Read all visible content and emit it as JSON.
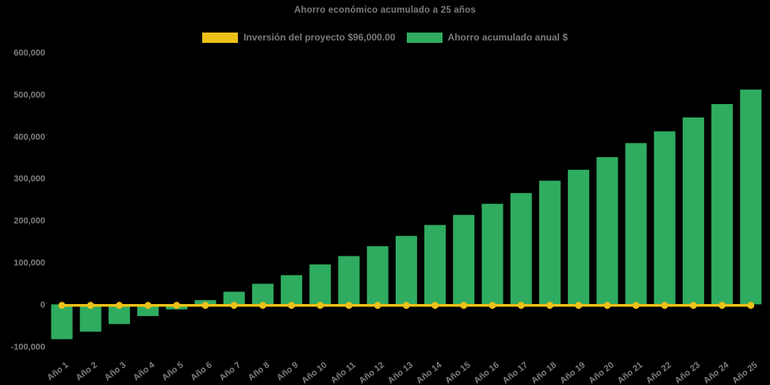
{
  "title": "Ahorro económico acumulado a 25 años",
  "legend": {
    "investment": {
      "label": "Inversión del proyecto $96,000.00",
      "color": "#EDC218"
    },
    "savings": {
      "label": "Ahorro acumulado anual $",
      "color": "#2FAC60"
    }
  },
  "colors": {
    "background": "#000000",
    "text": "#7e7e7e",
    "bar": "#2FAC60",
    "line": "#EDC218"
  },
  "chart_data": {
    "type": "bar",
    "title": "Ahorro económico acumulado a 25 años",
    "categories": [
      "Año 1",
      "Año 2",
      "Año 3",
      "Año 4",
      "Año 5",
      "Año 6",
      "Año 7",
      "Año 8",
      "Año 9",
      "Año 10",
      "Año 11",
      "Año 12",
      "Año 13",
      "Año 14",
      "Año 15",
      "Año 16",
      "Año 17",
      "Año 18",
      "Año 19",
      "Año 20",
      "Año 21",
      "Año 22",
      "Año 23",
      "Año 24",
      "Año 25"
    ],
    "series": [
      {
        "name": "Ahorro acumulado anual $",
        "type": "bar",
        "color": "#2FAC60",
        "values": [
          -83000,
          -65000,
          -47000,
          -28000,
          -12000,
          10000,
          30000,
          49000,
          69500,
          95000,
          115000,
          138500,
          163000,
          189000,
          213000,
          239500,
          265000,
          294500,
          320500,
          350500,
          384000,
          412000,
          445000,
          477000,
          511500
        ]
      },
      {
        "name": "Inversión del proyecto $96,000.00",
        "type": "line",
        "color": "#EDC218",
        "marker": "circle",
        "values": [
          0,
          0,
          0,
          0,
          0,
          0,
          0,
          0,
          0,
          0,
          0,
          0,
          0,
          0,
          0,
          0,
          0,
          0,
          0,
          0,
          0,
          0,
          0,
          0,
          0
        ]
      }
    ],
    "ylim": [
      -100000,
      600000
    ],
    "yticks": [
      600000,
      500000,
      400000,
      300000,
      200000,
      100000,
      0,
      -100000
    ],
    "ytick_labels": [
      "600,000",
      "500,000",
      "400,000",
      "300,000",
      "200,000",
      "100,000",
      "0",
      "-100,000"
    ],
    "grid": false,
    "legend_position": "top",
    "background": "#000000"
  }
}
